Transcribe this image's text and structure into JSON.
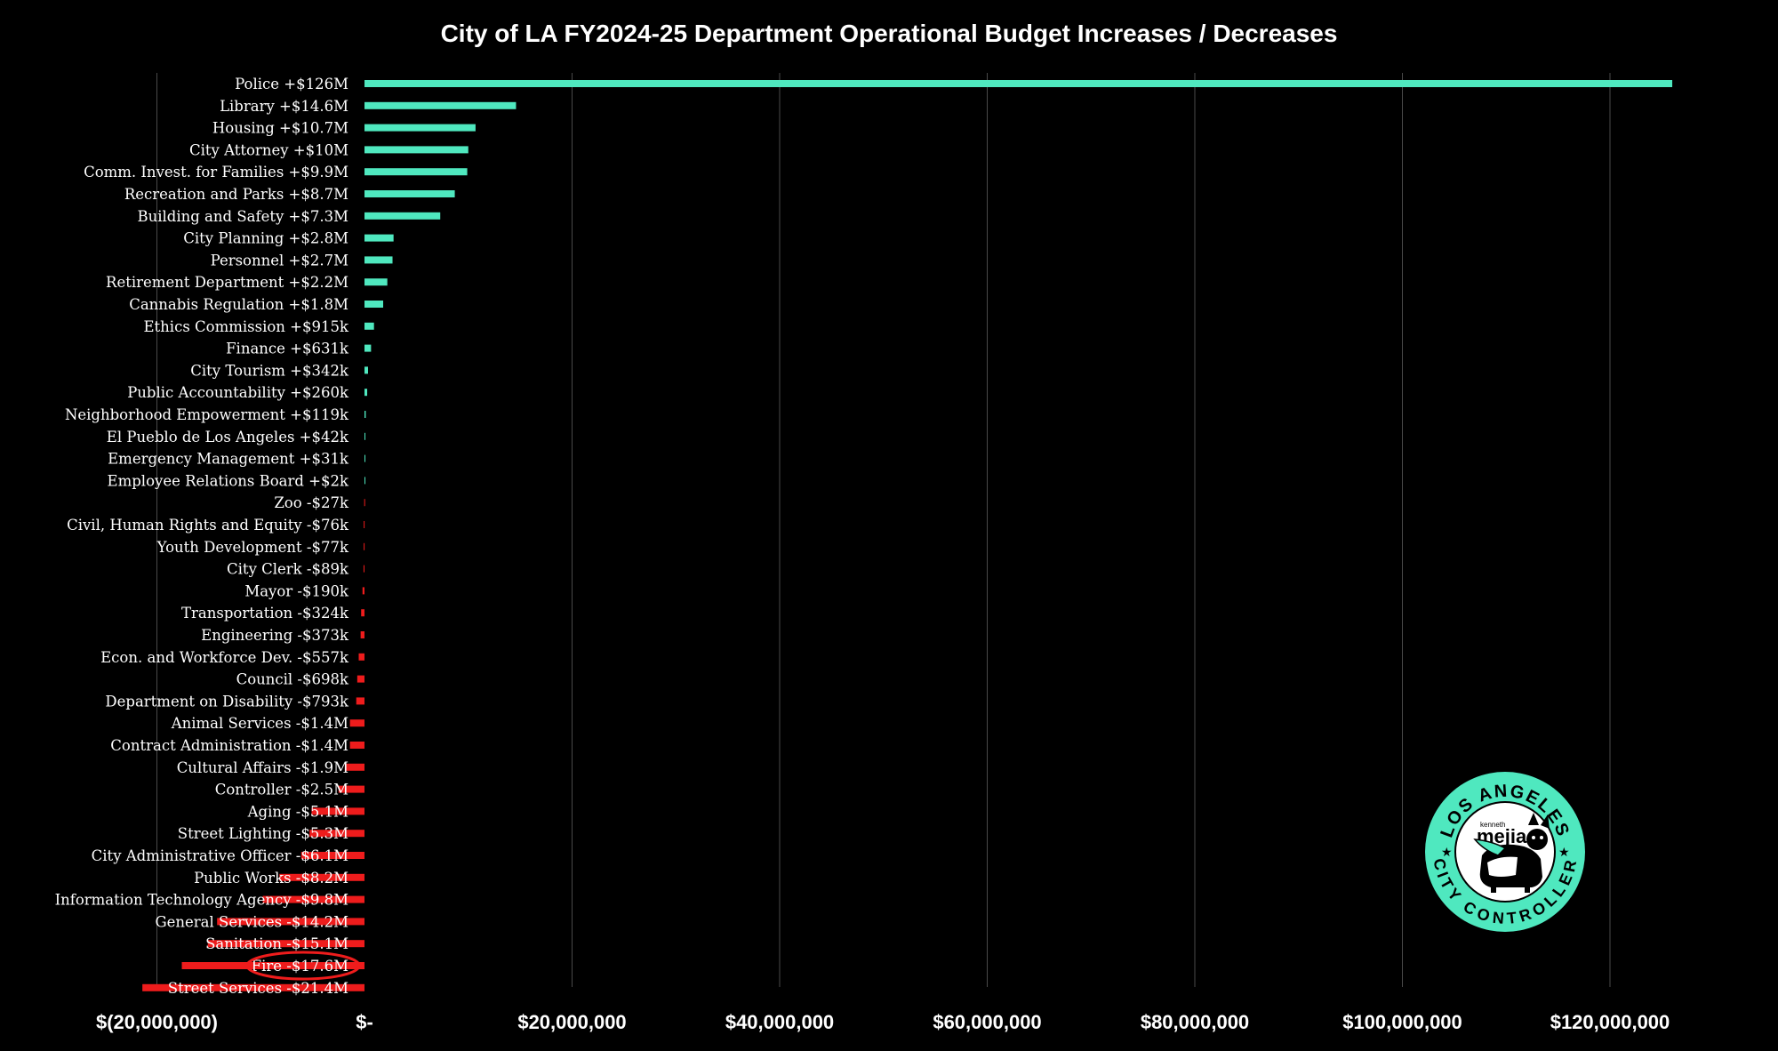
{
  "chart_data": {
    "type": "bar",
    "orientation": "horizontal",
    "title": "City of LA FY2024-25 Department Operational Budget Increases / Decreases",
    "xlabel": "",
    "ylabel": "",
    "xlim": [
      -20000000,
      125000000
    ],
    "x_ticks": [
      -20000000,
      0,
      20000000,
      40000000,
      60000000,
      80000000,
      100000000,
      120000000
    ],
    "x_tick_labels": [
      "$(20,000,000)",
      "$-",
      "$20,000,000",
      "$40,000,000",
      "$60,000,000",
      "$80,000,000",
      "$100,000,000",
      "$120,000,000"
    ],
    "grid": "vertical",
    "legend": "none",
    "colors": {
      "background": "#000000",
      "increase": "#4fe8bf",
      "decrease": "#ee1c1c",
      "grid": "#4a4a4a",
      "text": "#ffffff"
    },
    "categories": [
      "Police +$126M",
      "Library +$14.6M",
      "Housing +$10.7M",
      "City Attorney +$10M",
      "Comm. Invest. for Families +$9.9M",
      "Recreation and Parks +$8.7M",
      "Building and Safety +$7.3M",
      "City Planning +$2.8M",
      "Personnel +$2.7M",
      "Retirement Department +$2.2M",
      "Cannabis Regulation +$1.8M",
      "Ethics Commission +$915k",
      "Finance +$631k",
      "City Tourism +$342k",
      "Public Accountability +$260k",
      "Neighborhood Empowerment +$119k",
      "El Pueblo de Los Angeles +$42k",
      "Emergency Management +$31k",
      "Employee Relations Board +$2k",
      "Zoo -$27k",
      "Civil, Human Rights and Equity -$76k",
      "Youth Development -$77k",
      "City Clerk -$89k",
      "Mayor -$190k",
      "Transportation -$324k",
      "Engineering -$373k",
      "Econ. and Workforce Dev. -$557k",
      "Council -$698k",
      "Department on Disability -$793k",
      "Animal Services -$1.4M",
      "Contract Administration -$1.4M",
      "Cultural Affairs -$1.9M",
      "Controller -$2.5M",
      "Aging -$5.1M",
      "Street Lighting -$5.3M",
      "City Administrative Officer -$6.1M",
      "Public Works -$8.2M",
      "Information Technology Agency -$9.8M",
      "General Services -$14.2M",
      "Sanitation -$15.1M",
      "Fire -$17.6M",
      "Street Services -$21.4M"
    ],
    "values": [
      126000000,
      14600000,
      10700000,
      10000000,
      9900000,
      8700000,
      7300000,
      2800000,
      2700000,
      2200000,
      1800000,
      915000,
      631000,
      342000,
      260000,
      119000,
      42000,
      31000,
      2000,
      -27000,
      -76000,
      -77000,
      -89000,
      -190000,
      -324000,
      -373000,
      -557000,
      -698000,
      -793000,
      -1400000,
      -1400000,
      -1900000,
      -2500000,
      -5100000,
      -5300000,
      -6100000,
      -8200000,
      -9800000,
      -14200000,
      -15100000,
      -17600000,
      -21400000
    ],
    "highlighted_category": "Fire -$17.6M"
  },
  "logo": {
    "top_text": "LOS ANGELES",
    "bottom_text": "CITY CONTROLLER",
    "name_small": "kenneth",
    "name": "mejia"
  }
}
